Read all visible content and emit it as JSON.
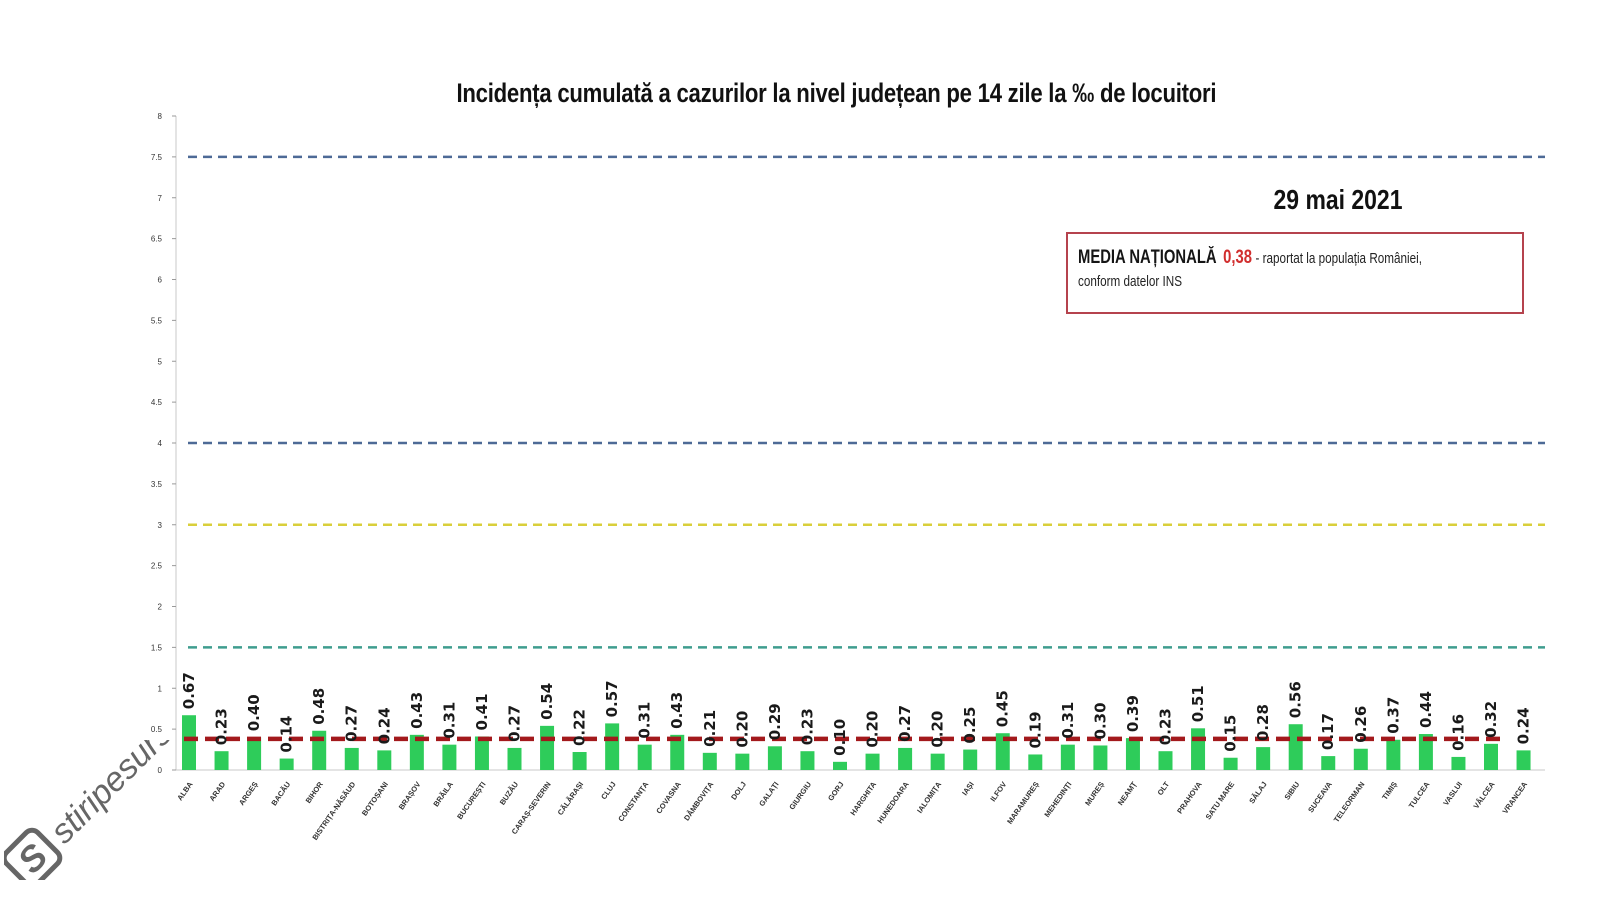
{
  "chart_data": {
    "type": "bar",
    "title": "Incidența cumulată a cazurilor la nivel județean pe 14 zile  la ‰ de locuitori",
    "date": "29 mai 2021",
    "categories": [
      "ALBA",
      "ARAD",
      "ARGEȘ",
      "BACĂU",
      "BIHOR",
      "BISTRIȚA-NĂSĂUD",
      "BOTOȘANI",
      "BRAȘOV",
      "BRĂILA",
      "BUCUREȘTI",
      "BUZĂU",
      "CARAȘ-SEVERIN",
      "CĂLĂRAȘI",
      "CLUJ",
      "CONSTANȚA",
      "COVASNA",
      "DÂMBOVIȚA",
      "DOLJ",
      "GALAȚI",
      "GIURGIU",
      "GORJ",
      "HARGHITA",
      "HUNEDOARA",
      "IALOMIȚA",
      "IAȘI",
      "ILFOV",
      "MARAMUREȘ",
      "MEHEDINȚI",
      "MUREȘ",
      "NEAMȚ",
      "OLT",
      "PRAHOVA",
      "SATU MARE",
      "SĂLAJ",
      "SIBIU",
      "SUCEAVA",
      "TELEORMAN",
      "TIMIȘ",
      "TULCEA",
      "VASLUI",
      "VÂLCEA",
      "VRANCEA"
    ],
    "values": [
      0.67,
      0.23,
      0.4,
      0.14,
      0.48,
      0.27,
      0.24,
      0.43,
      0.31,
      0.41,
      0.27,
      0.54,
      0.22,
      0.57,
      0.31,
      0.43,
      0.21,
      0.2,
      0.29,
      0.23,
      0.1,
      0.2,
      0.27,
      0.2,
      0.25,
      0.45,
      0.19,
      0.31,
      0.3,
      0.39,
      0.23,
      0.51,
      0.15,
      0.28,
      0.56,
      0.17,
      0.26,
      0.37,
      0.44,
      0.16,
      0.32,
      0.24
    ],
    "value_labels": [
      "0.67",
      "0.23",
      "0.40",
      "0.14",
      "0.48",
      "0.27",
      "0.24",
      "0.43",
      "0.31",
      "0.41",
      "0.27",
      "0.54",
      "0.22",
      "0.57",
      "0.31",
      "0.43",
      "0.21",
      "0.20",
      "0.29",
      "0.23",
      "0.10",
      "0.20",
      "0.27",
      "0.20",
      "0.25",
      "0.45",
      "0.19",
      "0.31",
      "0.30",
      "0.39",
      "0.23",
      "0.51",
      "0.15",
      "0.28",
      "0.56",
      "0.17",
      "0.26",
      "0.37",
      "0.44",
      "0.16",
      "0.32",
      "0.24"
    ],
    "ylim": [
      0,
      8
    ],
    "yticks": [
      0,
      0.5,
      1,
      1.5,
      2,
      2.5,
      3,
      3.5,
      4,
      4.5,
      5,
      5.5,
      6,
      6.5,
      7,
      7.5,
      8
    ],
    "ytick_labels": [
      "0",
      "0.5",
      "1",
      "1.5",
      "2",
      "2.5",
      "3",
      "3.5",
      "4",
      "4.5",
      "5",
      "5.5",
      "6",
      "6.5",
      "7",
      "7.5",
      "8"
    ],
    "bar_color": "#2ecc5a",
    "thresholds": [
      {
        "value": 7.5,
        "color": "#4d6a96"
      },
      {
        "value": 4,
        "color": "#4d6a96"
      },
      {
        "value": 3,
        "color": "#d9cf3a"
      },
      {
        "value": 1.5,
        "color": "#3f9d8f"
      }
    ],
    "national_average": {
      "value": 0.38,
      "color": "#a3191c"
    },
    "grid": false
  },
  "annotation": {
    "title": "MEDIA NAȚIONALĂ",
    "value": "0,38",
    "desc": "- raportat la populația României,",
    "desc2": "conform datelor INS",
    "border_color": "#b5434d",
    "value_color": "#d12e2e"
  },
  "watermark": {
    "text": "stiripesurse.ro",
    "logo_letter": "S",
    "color": "#666666"
  }
}
